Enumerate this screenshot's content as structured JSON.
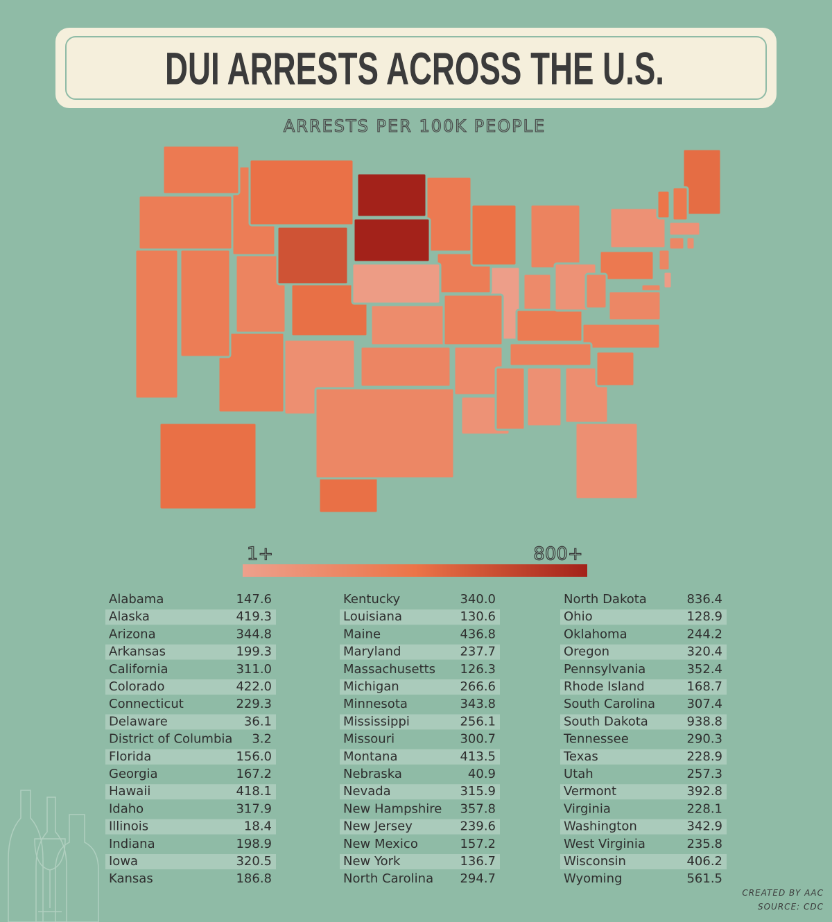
{
  "header": {
    "title": "DUI ARRESTS ACROSS THE U.S.",
    "subtitle": "ARRESTS PER 100K PEOPLE"
  },
  "legend": {
    "min": 1,
    "max": 800,
    "min_label": "1+",
    "max_label": "800+",
    "colors": [
      "#eda08c",
      "#ec7448",
      "#a3221a"
    ]
  },
  "table": {
    "states": [
      "Alabama",
      "Alaska",
      "Arizona",
      "Arkansas",
      "California",
      "Colorado",
      "Connecticut",
      "Delaware",
      "District of Columbia",
      "Florida",
      "Georgia",
      "Hawaii",
      "Idaho",
      "Illinois",
      "Indiana",
      "Iowa",
      "Kansas",
      "Kentucky",
      "Louisiana",
      "Maine",
      "Maryland",
      "Massachusetts",
      "Michigan",
      "Minnesota",
      "Mississippi",
      "Missouri",
      "Montana",
      "Nebraska",
      "Nevada",
      "New Hampshire",
      "New Jersey",
      "New Mexico",
      "New York",
      "North Carolina",
      "North Dakota",
      "Ohio",
      "Oklahoma",
      "Oregon",
      "Pennsylvania",
      "Rhode Island",
      "South Carolina",
      "South Dakota",
      "Tennessee",
      "Texas",
      "Utah",
      "Vermont",
      "Virginia",
      "Washington",
      "West Virginia",
      "Wisconsin",
      "Wyoming"
    ],
    "values": [
      147.6,
      419.3,
      344.8,
      199.3,
      311,
      422,
      229.3,
      36.1,
      3.2,
      156,
      167.2,
      418.1,
      317.9,
      18.4,
      198.9,
      320.5,
      186.8,
      340,
      130.6,
      436.8,
      237.7,
      126.3,
      266.6,
      343.8,
      256.1,
      300.7,
      413.5,
      40.9,
      315.9,
      357.8,
      239.6,
      157.2,
      136.7,
      294.7,
      836.4,
      128.9,
      244.2,
      320.4,
      352.4,
      168.7,
      307.4,
      938.8,
      290.3,
      228.9,
      257.3,
      392.8,
      228.1,
      342.9,
      235.8,
      406.2,
      561.5
    ],
    "value_labels": [
      "147.6",
      "419.3",
      "344.8",
      "199.3",
      "311.0",
      "422.0",
      "229.3",
      "36.1",
      "3.2",
      "156.0",
      "167.2",
      "418.1",
      "317.9",
      "18.4",
      "198.9",
      "320.5",
      "186.8",
      "340.0",
      "130.6",
      "436.8",
      "237.7",
      "126.3",
      "266.6",
      "343.8",
      "256.1",
      "300.7",
      "413.5",
      "40.9",
      "315.9",
      "357.8",
      "239.6",
      "157.2",
      "136.7",
      "294.7",
      "836.4",
      "128.9",
      "244.2",
      "320.4",
      "352.4",
      "168.7",
      "307.4",
      "938.8",
      "290.3",
      "228.9",
      "257.3",
      "392.8",
      "228.1",
      "342.9",
      "235.8",
      "406.2",
      "561.5"
    ]
  },
  "footer": {
    "credit": "CREATED BY AAC",
    "source": "SOURCE: CDC"
  }
}
